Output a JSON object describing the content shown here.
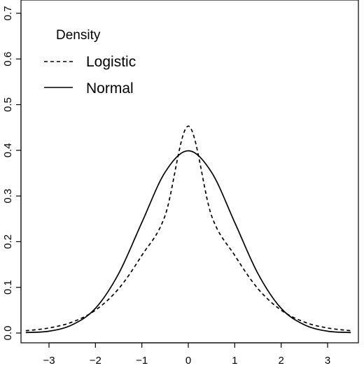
{
  "chart_data": {
    "type": "line",
    "title": "",
    "xlabel": "",
    "ylabel": "",
    "xlim": [
      -3.5,
      3.5
    ],
    "ylim": [
      0,
      0.7
    ],
    "x_ticks": [
      -3,
      -2,
      -1,
      0,
      1,
      2,
      3
    ],
    "x_tick_labels": [
      "−3",
      "−2",
      "−1",
      "0",
      "1",
      "2",
      "3"
    ],
    "y_ticks": [
      0,
      0.1,
      0.2,
      0.3,
      0.4,
      0.5,
      0.6,
      0.7
    ],
    "y_tick_labels": [
      "0.0",
      "0.1",
      "0.2",
      "0.3",
      "0.4",
      "0.5",
      "0.6",
      "0.7"
    ],
    "grid": false,
    "legend": {
      "title": "Density",
      "position": "top-left",
      "entries": [
        {
          "label": "Logistic",
          "line_style": "dashed"
        },
        {
          "label": "Normal",
          "line_style": "solid"
        }
      ]
    },
    "series": [
      {
        "name": "Logistic",
        "line_style": "dashed",
        "color": "#000000",
        "x": [
          -3.5,
          -3.0,
          -2.5,
          -2.0,
          -1.5,
          -1.0,
          -0.5,
          0.0,
          0.5,
          1.0,
          1.5,
          2.0,
          2.5,
          3.0,
          3.5
        ],
        "y": [
          0.005,
          0.011,
          0.024,
          0.05,
          0.097,
          0.17,
          0.257,
          0.453,
          0.257,
          0.17,
          0.097,
          0.05,
          0.024,
          0.011,
          0.005
        ]
      },
      {
        "name": "Normal",
        "line_style": "solid",
        "color": "#000000",
        "x": [
          -3.5,
          -3.0,
          -2.5,
          -2.0,
          -1.5,
          -1.0,
          -0.5,
          0.0,
          0.5,
          1.0,
          1.5,
          2.0,
          2.5,
          3.0,
          3.5
        ],
        "y": [
          0.001,
          0.004,
          0.018,
          0.054,
          0.13,
          0.242,
          0.352,
          0.399,
          0.352,
          0.242,
          0.13,
          0.054,
          0.018,
          0.004,
          0.001
        ]
      }
    ]
  }
}
